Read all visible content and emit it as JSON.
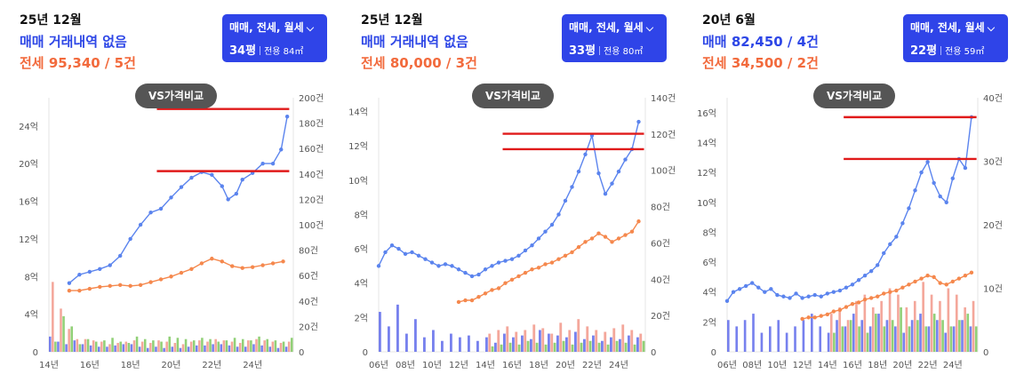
{
  "panels": [
    {
      "date": "25년 12월",
      "sale_text": "매매 거래내역 없음",
      "lease_text": "전세 95,340 / 5건",
      "filter": {
        "type_label": "매매, 전세, 월세",
        "pyeong": "34평",
        "area": "전용 84㎡"
      },
      "compare_button": "VS가격비교"
    },
    {
      "date": "25년 12월",
      "sale_text": "매매 거래내역 없음",
      "lease_text": "전세 80,000 / 3건",
      "filter": {
        "type_label": "매매, 전세, 월세",
        "pyeong": "33평",
        "area": "전용 80㎡"
      },
      "compare_button": "VS가격비교"
    },
    {
      "date": "20년 6월",
      "sale_text": "매매 82,450 / 4건",
      "lease_text": "전세 34,500 / 2건",
      "filter": {
        "type_label": "매매, 전세, 월세",
        "pyeong": "22평",
        "area": "전용 59㎡"
      },
      "compare_button": "VS가격비교"
    }
  ],
  "colors": {
    "sale": "#5b84ee",
    "lease": "#f5884d",
    "sale_volume": "#4a57e8",
    "lease_volume": "#f08a7a",
    "rent_volume": "#6cc04a",
    "marker_line": "#e01a1a",
    "button_bg": "#2f44e8",
    "vs_bg": "#555555"
  },
  "chart_data": [
    {
      "type": "line",
      "x_tick_labels": [
        "14년",
        "16년",
        "18년",
        "20년",
        "22년",
        "24년"
      ],
      "x_tick_years": [
        2014,
        2016,
        2018,
        2020,
        2022,
        2024
      ],
      "xlim": [
        2014,
        2026
      ],
      "y_tick_labels": [
        "0",
        "4억",
        "8억",
        "12억",
        "16억",
        "20억",
        "24억"
      ],
      "y_ticks": [
        0,
        4,
        8,
        12,
        16,
        20,
        24
      ],
      "ylim": [
        0,
        27
      ],
      "y2_tick_labels": [
        "0",
        "20건",
        "40건",
        "60건",
        "80건",
        "100건",
        "120건",
        "140건",
        "160건",
        "180건",
        "200건"
      ],
      "y2_ticks": [
        0,
        20,
        40,
        60,
        80,
        100,
        120,
        140,
        160,
        180,
        200
      ],
      "y2lim": [
        0,
        200
      ],
      "series": [
        {
          "name": "매매",
          "x": [
            2015.0,
            2015.5,
            2016.0,
            2016.5,
            2017.0,
            2017.5,
            2018.0,
            2018.5,
            2019.0,
            2019.5,
            2020.0,
            2020.5,
            2021.0,
            2021.5,
            2022.0,
            2022.5,
            2022.8,
            2023.2,
            2023.5,
            2024.0,
            2024.5,
            2025.0,
            2025.4,
            2025.7
          ],
          "y": [
            7.3,
            8.2,
            8.5,
            8.8,
            9.2,
            10.2,
            12.0,
            13.5,
            14.8,
            15.2,
            16.4,
            17.5,
            18.5,
            19.1,
            18.8,
            17.6,
            16.2,
            16.8,
            18.3,
            19.0,
            20.0,
            20.0,
            21.5,
            25.0
          ]
        },
        {
          "name": "전세",
          "x": [
            2015.0,
            2015.5,
            2016.0,
            2016.5,
            2017.0,
            2017.5,
            2018.0,
            2018.5,
            2019.0,
            2019.5,
            2020.0,
            2020.5,
            2021.0,
            2021.5,
            2022.0,
            2022.5,
            2023.0,
            2023.5,
            2024.0,
            2024.5,
            2025.0,
            2025.5
          ],
          "y": [
            6.5,
            6.5,
            6.7,
            6.9,
            7.0,
            7.1,
            7.0,
            7.1,
            7.4,
            7.7,
            8.0,
            8.4,
            8.8,
            9.4,
            9.9,
            9.6,
            9.1,
            8.9,
            9.0,
            9.2,
            9.4,
            9.6
          ]
        }
      ],
      "reference_lines": [
        {
          "y": 25.8,
          "x_start": 2019.3,
          "x_end": 2025.8
        },
        {
          "y": 19.2,
          "x_start": 2019.3,
          "x_end": 2025.8
        }
      ],
      "volume_series": [
        {
          "name": "매매 거래량",
          "values": [
            12,
            8,
            6,
            9,
            6,
            5,
            4,
            4,
            5,
            6,
            6,
            4,
            3,
            4,
            3,
            4,
            3,
            4,
            5,
            5,
            6,
            6,
            5,
            4,
            4,
            6,
            5,
            4,
            3,
            4
          ]
        },
        {
          "name": "전세 거래량",
          "values": [
            55,
            34,
            18,
            10,
            10,
            9,
            8,
            6,
            7,
            8,
            9,
            8,
            7,
            9,
            8,
            7,
            6,
            8,
            9,
            8,
            10,
            9,
            8,
            7,
            9,
            10,
            9,
            8,
            7,
            8
          ]
        },
        {
          "name": "월세 거래량",
          "values": [
            8,
            28,
            20,
            6,
            10,
            8,
            9,
            11,
            8,
            7,
            12,
            10,
            9,
            8,
            12,
            11,
            10,
            9,
            11,
            10,
            8,
            9,
            11,
            10,
            9,
            12,
            10,
            9,
            8,
            11
          ]
        }
      ]
    },
    {
      "type": "line",
      "x_tick_labels": [
        "06년",
        "08년",
        "10년",
        "12년",
        "14년",
        "16년",
        "18년",
        "20년",
        "22년",
        "24년"
      ],
      "x_tick_years": [
        2006,
        2008,
        2010,
        2012,
        2014,
        2016,
        2018,
        2020,
        2022,
        2024
      ],
      "xlim": [
        2006,
        2026
      ],
      "y_tick_labels": [
        "0",
        "2억",
        "4억",
        "6억",
        "8억",
        "10억",
        "12억",
        "14억"
      ],
      "y_ticks": [
        0,
        2,
        4,
        6,
        8,
        10,
        12,
        14
      ],
      "ylim": [
        0,
        14.8
      ],
      "y2_tick_labels": [
        "0",
        "20건",
        "40건",
        "60건",
        "80건",
        "100건",
        "120건",
        "140건"
      ],
      "y2_ticks": [
        0,
        20,
        40,
        60,
        80,
        100,
        120,
        140
      ],
      "y2lim": [
        0,
        140
      ],
      "series": [
        {
          "name": "매매",
          "x": [
            2006.0,
            2006.5,
            2007.0,
            2007.5,
            2008.0,
            2008.5,
            2009.0,
            2009.5,
            2010.0,
            2010.5,
            2011.0,
            2011.5,
            2012.0,
            2012.5,
            2013.0,
            2013.5,
            2014.0,
            2014.5,
            2015.0,
            2015.5,
            2016.0,
            2016.5,
            2017.0,
            2017.5,
            2018.0,
            2018.5,
            2019.0,
            2019.5,
            2020.0,
            2020.5,
            2021.0,
            2021.5,
            2022.0,
            2022.5,
            2023.0,
            2023.5,
            2024.0,
            2024.5,
            2025.0,
            2025.5
          ],
          "y": [
            5.0,
            5.8,
            6.2,
            6.0,
            5.7,
            5.8,
            5.6,
            5.4,
            5.2,
            5.0,
            5.1,
            5.0,
            4.8,
            4.6,
            4.4,
            4.5,
            4.8,
            5.0,
            5.2,
            5.3,
            5.4,
            5.6,
            5.9,
            6.2,
            6.6,
            7.0,
            7.4,
            8.0,
            8.8,
            9.6,
            10.5,
            11.5,
            12.6,
            10.4,
            9.2,
            9.8,
            10.5,
            11.2,
            11.8,
            13.4
          ]
        },
        {
          "name": "전세",
          "x": [
            2012.0,
            2012.5,
            2013.0,
            2013.5,
            2014.0,
            2014.5,
            2015.0,
            2015.5,
            2016.0,
            2016.5,
            2017.0,
            2017.5,
            2018.0,
            2018.5,
            2019.0,
            2019.5,
            2020.0,
            2020.5,
            2021.0,
            2021.5,
            2022.0,
            2022.5,
            2023.0,
            2023.5,
            2024.0,
            2024.5,
            2025.0,
            2025.5
          ],
          "y": [
            2.9,
            3.0,
            3.0,
            3.2,
            3.4,
            3.6,
            3.7,
            4.0,
            4.2,
            4.4,
            4.6,
            4.8,
            4.9,
            5.1,
            5.2,
            5.4,
            5.6,
            5.8,
            6.1,
            6.4,
            6.6,
            6.9,
            6.7,
            6.4,
            6.6,
            6.8,
            7.0,
            7.6
          ]
        }
      ],
      "reference_lines": [
        {
          "y": 12.7,
          "x_start": 2015.3,
          "x_end": 2025.9
        },
        {
          "y": 11.8,
          "x_start": 2015.3,
          "x_end": 2025.9
        }
      ],
      "volume_series": [
        {
          "name": "매매 거래량",
          "values": [
            22,
            14,
            26,
            10,
            18,
            8,
            12,
            6,
            10,
            8,
            9,
            6,
            8,
            5,
            10,
            8,
            9,
            7,
            12,
            10,
            9,
            8,
            11,
            7,
            9,
            6,
            8,
            7,
            9,
            8
          ]
        },
        {
          "name": "전세 거래량",
          "values": [
            0,
            0,
            0,
            0,
            0,
            0,
            0,
            0,
            0,
            0,
            0,
            0,
            10,
            12,
            14,
            11,
            12,
            15,
            13,
            10,
            16,
            12,
            18,
            14,
            12,
            11,
            13,
            15,
            12,
            10
          ]
        },
        {
          "name": "월세 거래량",
          "values": [
            0,
            0,
            0,
            0,
            0,
            0,
            0,
            0,
            0,
            0,
            0,
            0,
            3,
            4,
            5,
            4,
            6,
            5,
            4,
            5,
            6,
            4,
            5,
            6,
            5,
            4,
            6,
            5,
            4,
            6
          ]
        }
      ]
    },
    {
      "type": "line",
      "x_tick_labels": [
        "06년",
        "08년",
        "10년",
        "12년",
        "14년",
        "16년",
        "18년",
        "20년",
        "22년",
        "24년"
      ],
      "x_tick_years": [
        2006,
        2008,
        2010,
        2012,
        2014,
        2016,
        2018,
        2020,
        2022,
        2024
      ],
      "xlim": [
        2006,
        2026
      ],
      "y_tick_labels": [
        "0",
        "2억",
        "4억",
        "6억",
        "8억",
        "10억",
        "12억",
        "14억",
        "16억"
      ],
      "y_ticks": [
        0,
        2,
        4,
        6,
        8,
        10,
        12,
        14,
        16
      ],
      "ylim": [
        0,
        17
      ],
      "y2_tick_labels": [
        "0",
        "10건",
        "20건",
        "30건",
        "40건"
      ],
      "y2_ticks": [
        0,
        10,
        20,
        30,
        40
      ],
      "y2lim": [
        0,
        40
      ],
      "series": [
        {
          "name": "매매",
          "x": [
            2006.0,
            2006.5,
            2007.0,
            2007.5,
            2008.0,
            2008.5,
            2009.0,
            2009.5,
            2010.0,
            2010.5,
            2011.0,
            2011.5,
            2012.0,
            2012.5,
            2013.0,
            2013.5,
            2014.0,
            2014.5,
            2015.0,
            2015.5,
            2016.0,
            2016.5,
            2017.0,
            2017.5,
            2018.0,
            2018.5,
            2019.0,
            2019.5,
            2020.0,
            2020.5,
            2021.0,
            2021.5,
            2022.0,
            2022.5,
            2023.0,
            2023.5,
            2024.0,
            2024.5,
            2025.0,
            2025.5
          ],
          "y": [
            3.4,
            4.0,
            4.2,
            4.4,
            4.6,
            4.3,
            4.0,
            4.2,
            3.8,
            3.7,
            3.6,
            3.9,
            3.6,
            3.7,
            3.8,
            3.7,
            3.9,
            4.0,
            4.1,
            4.3,
            4.5,
            4.8,
            5.1,
            5.4,
            5.8,
            6.6,
            7.2,
            7.7,
            8.6,
            9.6,
            10.8,
            12.0,
            12.7,
            11.3,
            10.4,
            10.0,
            11.6,
            12.9,
            12.3,
            15.7
          ]
        },
        {
          "name": "전세",
          "x": [
            2012.0,
            2012.5,
            2013.0,
            2013.5,
            2014.0,
            2014.5,
            2015.0,
            2015.5,
            2016.0,
            2016.5,
            2017.0,
            2017.5,
            2018.0,
            2018.5,
            2019.0,
            2019.5,
            2020.0,
            2020.5,
            2021.0,
            2021.5,
            2022.0,
            2022.5,
            2023.0,
            2023.5,
            2024.0,
            2024.5,
            2025.0,
            2025.5
          ],
          "y": [
            2.2,
            2.3,
            2.3,
            2.4,
            2.5,
            2.7,
            2.8,
            3.0,
            3.2,
            3.3,
            3.5,
            3.6,
            3.7,
            3.9,
            4.0,
            4.1,
            4.3,
            4.5,
            4.7,
            4.9,
            5.1,
            5.0,
            4.6,
            4.5,
            4.7,
            4.9,
            5.1,
            5.3
          ]
        }
      ],
      "reference_lines": [
        {
          "y": 15.7,
          "x_start": 2015.3,
          "x_end": 2025.9
        },
        {
          "y": 12.9,
          "x_start": 2015.3,
          "x_end": 2025.9
        }
      ],
      "volume_series": [
        {
          "name": "매매 거래량",
          "values": [
            5,
            4,
            5,
            6,
            3,
            4,
            5,
            3,
            4,
            5,
            6,
            4,
            3,
            5,
            4,
            6,
            5,
            4,
            6,
            5,
            4,
            3,
            5,
            6,
            4,
            5,
            3,
            4,
            5,
            4
          ]
        },
        {
          "name": "전세 거래량",
          "values": [
            0,
            0,
            0,
            0,
            0,
            0,
            0,
            0,
            0,
            0,
            0,
            0,
            6,
            7,
            5,
            8,
            9,
            7,
            8,
            10,
            9,
            7,
            8,
            11,
            9,
            8,
            10,
            9,
            7,
            8
          ]
        },
        {
          "name": "월세 거래량",
          "values": [
            0,
            0,
            0,
            0,
            0,
            0,
            0,
            0,
            0,
            0,
            0,
            0,
            3,
            4,
            5,
            4,
            3,
            6,
            4,
            5,
            7,
            4,
            5,
            4,
            6,
            5,
            4,
            5,
            6,
            4
          ]
        }
      ]
    }
  ]
}
